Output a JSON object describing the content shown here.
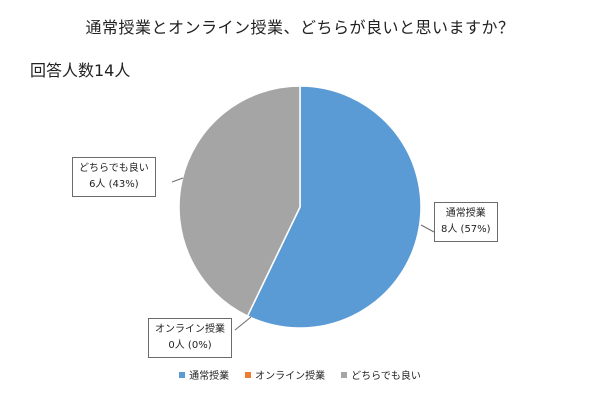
{
  "chart_data": {
    "type": "pie",
    "title": "通常授業とオンライン授業、どちらが良いと思いますか？",
    "subtitle": "回答人数14人",
    "categories": [
      "通常授業",
      "オンライン授業",
      "どちらでも良い"
    ],
    "values": [
      8,
      0,
      6
    ],
    "colors": [
      "#5b9bd5",
      "#ed7d31",
      "#a5a5a5"
    ],
    "start_angle_deg": 0,
    "labels": [
      {
        "name": "通常授業",
        "value_text": "8人 (57%)"
      },
      {
        "name": "オンライン授業",
        "value_text": "0人 (0%)"
      },
      {
        "name": "どちらでも良い",
        "value_text": "6人 (43%)"
      }
    ],
    "legend_position": "bottom"
  }
}
